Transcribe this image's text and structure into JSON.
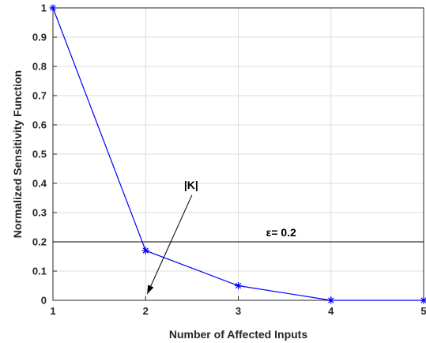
{
  "chart_data": {
    "type": "line",
    "xlabel": "Number of Affected Inputs",
    "ylabel": "Normalized Sensitivity Function",
    "xlim": [
      1,
      5
    ],
    "ylim": [
      0,
      1
    ],
    "x_ticks": [
      "1",
      "2",
      "3",
      "4",
      "5"
    ],
    "y_ticks": [
      "0",
      "0.1",
      "0.2",
      "0.3",
      "0.4",
      "0.5",
      "0.6",
      "0.7",
      "0.8",
      "0.9",
      "1"
    ],
    "grid": true,
    "series": [
      {
        "x": [
          1,
          2,
          3,
          4,
          5
        ],
        "y": [
          1.0,
          0.17,
          0.05,
          0.0,
          0.0
        ],
        "color": "#0000ff",
        "marker": "asterisk"
      }
    ],
    "threshold": {
      "y": 0.2,
      "label": "ε= 0.2",
      "color": "#000000"
    },
    "annotation": {
      "text": "|K|",
      "arrow_to": [
        2,
        0.0
      ]
    }
  }
}
